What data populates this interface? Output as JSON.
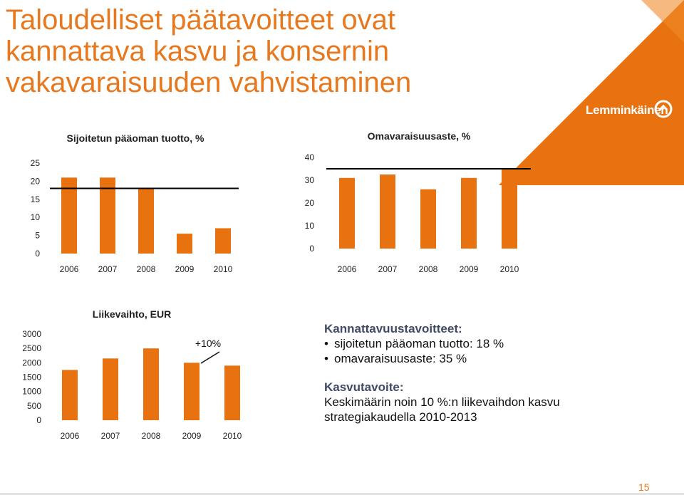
{
  "title_lines": [
    "Taloudelliset päätavoitteet ovat",
    "kannattava kasvu ja konsernin",
    "vakavaraisuuden vahvistaminen"
  ],
  "logo": {
    "text": "Lemminkäinen"
  },
  "colors": {
    "bar": "#e8720f",
    "title": "#e8781e",
    "target_line": "#000000",
    "heading": "#404a66"
  },
  "chart_data": [
    {
      "type": "bar",
      "title": "Sijoitetun pääoman tuotto, %",
      "categories": [
        "2006",
        "2007",
        "2008",
        "2009",
        "2010"
      ],
      "values": [
        21,
        21,
        18,
        5.5,
        7
      ],
      "ylim": [
        0,
        25
      ],
      "yticks": [
        0,
        5,
        10,
        15,
        20,
        25
      ],
      "target_line": 18
    },
    {
      "type": "bar",
      "title": "Omavaraisuusaste, %",
      "categories": [
        "2006",
        "2007",
        "2008",
        "2009",
        "2010"
      ],
      "values": [
        31,
        32.5,
        26,
        31,
        35
      ],
      "ylim": [
        0,
        40
      ],
      "yticks": [
        0,
        10,
        20,
        30,
        40
      ],
      "target_line": 35
    },
    {
      "type": "bar",
      "title": "Liikevaihto, EUR",
      "categories": [
        "2006",
        "2007",
        "2008",
        "2009",
        "2010"
      ],
      "values": [
        1750,
        2150,
        2500,
        2000,
        1900
      ],
      "ylim": [
        0,
        3000
      ],
      "yticks": [
        0,
        500,
        1000,
        1500,
        2000,
        2500,
        3000
      ],
      "annotation": "+10%"
    }
  ],
  "info": {
    "profitability_heading": "Kannattavuustavoitteet:",
    "bullets": [
      "sijoitetun pääoman tuotto: 18 %",
      "omavaraisuusaste: 35 %"
    ],
    "growth_heading": "Kasvutavoite:",
    "growth_lines": [
      "Keskimäärin noin 10 %:n liikevaihdon kasvu",
      "strategiakaudella 2010-2013"
    ]
  },
  "page_number": "15"
}
